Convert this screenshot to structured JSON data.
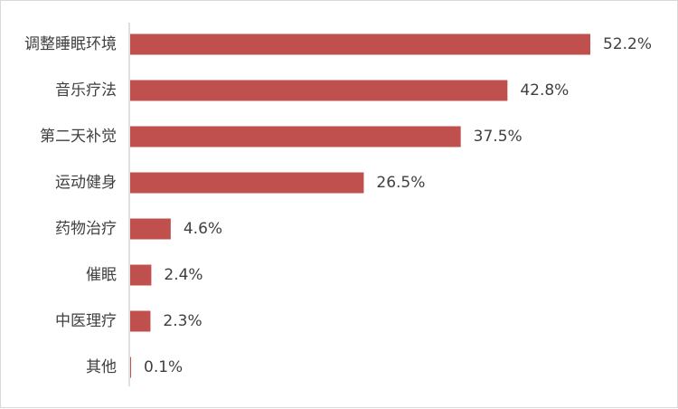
{
  "chart_data": {
    "type": "bar",
    "orientation": "horizontal",
    "title": "",
    "xlabel": "",
    "ylabel": "",
    "categories": [
      "调整睡眠环境",
      "音乐疗法",
      "第二天补觉",
      "运动健身",
      "药物治疗",
      "催眠",
      "中医理疗",
      "其他"
    ],
    "values": [
      52.2,
      42.8,
      37.5,
      26.5,
      4.6,
      2.4,
      2.3,
      0.1
    ],
    "value_labels": [
      "52.2%",
      "42.8%",
      "37.5%",
      "26.5%",
      "4.6%",
      "2.4%",
      "2.3%",
      "0.1%"
    ],
    "xlim": [
      0,
      52.2
    ],
    "grid": false,
    "legend": "none",
    "bar_color": "#C0504D",
    "axis_color": "#BFBFBF"
  }
}
